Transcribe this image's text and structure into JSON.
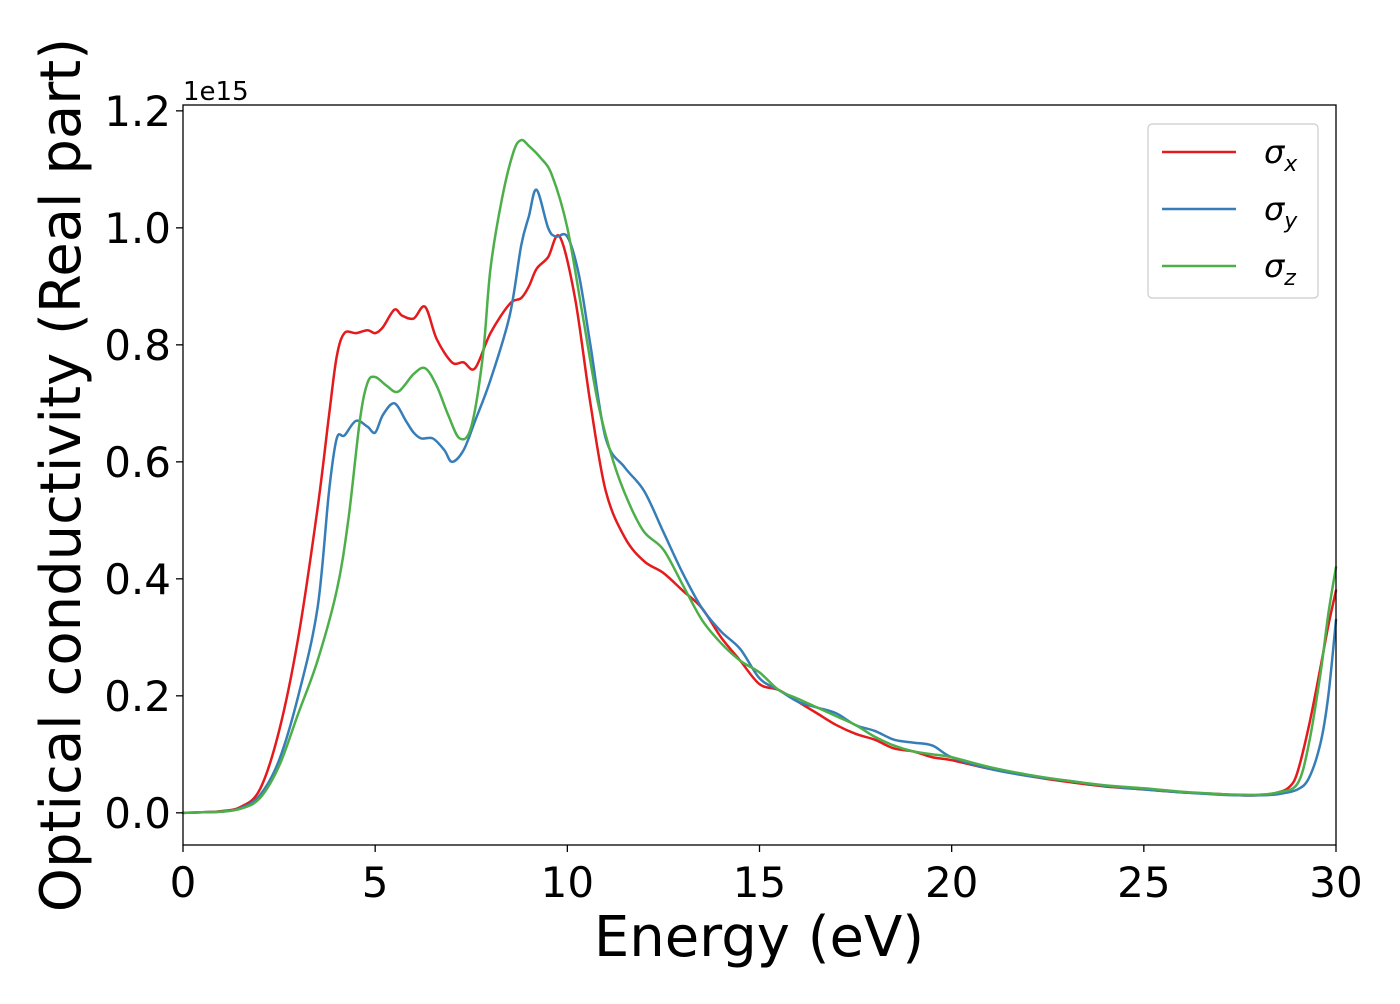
{
  "chart_data": {
    "type": "line",
    "title": "",
    "xlabel": "Energy (eV)",
    "ylabel": "Optical conductivity (Real part)",
    "y_offset_text": "1e15",
    "y_scale_factor": 1000000000000000.0,
    "xlim": [
      0,
      30
    ],
    "ylim": [
      -0.055,
      1.21
    ],
    "xticks": [
      0,
      5,
      10,
      15,
      20,
      25,
      30
    ],
    "yticks": [
      0.0,
      0.2,
      0.4,
      0.6,
      0.8,
      1.0,
      1.2
    ],
    "xtick_labels": [
      "0",
      "5",
      "10",
      "15",
      "20",
      "25",
      "30"
    ],
    "ytick_labels": [
      "0.0",
      "0.2",
      "0.4",
      "0.6",
      "0.8",
      "1.0",
      "1.2"
    ],
    "grid": false,
    "legend_position": "top-right",
    "series": [
      {
        "name": "σx",
        "legend_base": "σ",
        "legend_sub": "x",
        "color": "#e41a1c",
        "x": [
          0,
          0.5,
          1.0,
          1.5,
          2.0,
          2.5,
          3.0,
          3.5,
          3.8,
          4.0,
          4.2,
          4.5,
          4.8,
          5.0,
          5.2,
          5.5,
          5.7,
          6.0,
          6.3,
          6.6,
          7.0,
          7.3,
          7.6,
          8.0,
          8.5,
          8.8,
          9.0,
          9.2,
          9.5,
          9.8,
          10.2,
          10.6,
          11.0,
          11.5,
          12.0,
          12.5,
          13.0,
          13.5,
          14.0,
          14.5,
          15.0,
          15.5,
          16.0,
          16.5,
          17.0,
          17.5,
          18.0,
          18.5,
          19.0,
          19.5,
          20.0,
          21.0,
          22.0,
          23.0,
          24.0,
          25.0,
          26.0,
          27.0,
          27.5,
          28.0,
          28.5,
          28.8,
          29.0,
          29.3,
          29.6,
          29.8,
          30.0
        ],
        "y": [
          0.0,
          0.001,
          0.003,
          0.01,
          0.04,
          0.14,
          0.3,
          0.52,
          0.68,
          0.78,
          0.82,
          0.82,
          0.825,
          0.82,
          0.83,
          0.86,
          0.85,
          0.845,
          0.865,
          0.81,
          0.77,
          0.77,
          0.76,
          0.82,
          0.87,
          0.88,
          0.9,
          0.93,
          0.95,
          0.985,
          0.88,
          0.7,
          0.55,
          0.47,
          0.43,
          0.41,
          0.38,
          0.35,
          0.3,
          0.26,
          0.22,
          0.21,
          0.19,
          0.17,
          0.15,
          0.135,
          0.125,
          0.11,
          0.105,
          0.095,
          0.09,
          0.075,
          0.063,
          0.053,
          0.045,
          0.04,
          0.035,
          0.032,
          0.03,
          0.03,
          0.035,
          0.045,
          0.07,
          0.15,
          0.25,
          0.32,
          0.38
        ]
      },
      {
        "name": "σy",
        "legend_base": "σ",
        "legend_sub": "y",
        "color": "#377eb8",
        "x": [
          0,
          0.5,
          1.0,
          1.5,
          2.0,
          2.5,
          3.0,
          3.5,
          3.8,
          4.0,
          4.2,
          4.5,
          4.8,
          5.0,
          5.2,
          5.5,
          5.8,
          6.0,
          6.2,
          6.5,
          6.8,
          7.0,
          7.3,
          7.6,
          8.0,
          8.5,
          8.8,
          9.0,
          9.2,
          9.5,
          9.7,
          10.0,
          10.3,
          10.6,
          11.0,
          11.5,
          12.0,
          12.5,
          13.0,
          13.5,
          14.0,
          14.5,
          15.0,
          15.5,
          16.0,
          16.5,
          17.0,
          17.5,
          18.0,
          18.5,
          19.0,
          19.5,
          20.0,
          21.0,
          22.0,
          23.0,
          24.0,
          25.0,
          26.0,
          27.0,
          27.5,
          28.0,
          28.5,
          29.0,
          29.3,
          29.6,
          29.8,
          30.0
        ],
        "y": [
          0.0,
          0.001,
          0.002,
          0.008,
          0.03,
          0.09,
          0.2,
          0.35,
          0.55,
          0.64,
          0.645,
          0.67,
          0.66,
          0.65,
          0.68,
          0.7,
          0.67,
          0.65,
          0.64,
          0.64,
          0.62,
          0.6,
          0.62,
          0.67,
          0.74,
          0.85,
          0.97,
          1.02,
          1.065,
          1.0,
          0.985,
          0.985,
          0.92,
          0.8,
          0.64,
          0.59,
          0.55,
          0.48,
          0.41,
          0.35,
          0.31,
          0.28,
          0.23,
          0.21,
          0.19,
          0.18,
          0.17,
          0.15,
          0.14,
          0.125,
          0.12,
          0.115,
          0.095,
          0.075,
          0.063,
          0.055,
          0.046,
          0.04,
          0.035,
          0.031,
          0.03,
          0.03,
          0.032,
          0.04,
          0.06,
          0.12,
          0.2,
          0.33
        ]
      },
      {
        "name": "σz",
        "legend_base": "σ",
        "legend_sub": "z",
        "color": "#4daf4a",
        "x": [
          0,
          0.5,
          1.0,
          1.5,
          2.0,
          2.5,
          3.0,
          3.5,
          4.0,
          4.3,
          4.6,
          4.8,
          5.0,
          5.3,
          5.6,
          6.0,
          6.3,
          6.6,
          6.9,
          7.2,
          7.5,
          7.8,
          8.0,
          8.3,
          8.6,
          8.8,
          9.0,
          9.3,
          9.6,
          10.0,
          10.4,
          10.8,
          11.2,
          11.6,
          12.0,
          12.5,
          13.0,
          13.5,
          14.0,
          14.5,
          15.0,
          15.5,
          16.0,
          16.5,
          17.0,
          17.5,
          18.0,
          18.5,
          19.0,
          19.5,
          20.0,
          21.0,
          22.0,
          23.0,
          24.0,
          25.0,
          26.0,
          27.0,
          27.5,
          28.0,
          28.5,
          29.0,
          29.3,
          29.6,
          29.8,
          30.0
        ],
        "y": [
          0.0,
          0.001,
          0.002,
          0.007,
          0.025,
          0.08,
          0.17,
          0.26,
          0.38,
          0.5,
          0.67,
          0.735,
          0.745,
          0.73,
          0.72,
          0.75,
          0.76,
          0.73,
          0.68,
          0.64,
          0.66,
          0.78,
          0.93,
          1.05,
          1.13,
          1.15,
          1.14,
          1.12,
          1.09,
          1.0,
          0.85,
          0.7,
          0.6,
          0.53,
          0.48,
          0.45,
          0.39,
          0.33,
          0.29,
          0.26,
          0.24,
          0.21,
          0.195,
          0.18,
          0.165,
          0.15,
          0.13,
          0.115,
          0.105,
          0.1,
          0.095,
          0.078,
          0.065,
          0.055,
          0.047,
          0.042,
          0.036,
          0.032,
          0.031,
          0.031,
          0.035,
          0.05,
          0.12,
          0.24,
          0.34,
          0.42
        ]
      }
    ]
  }
}
